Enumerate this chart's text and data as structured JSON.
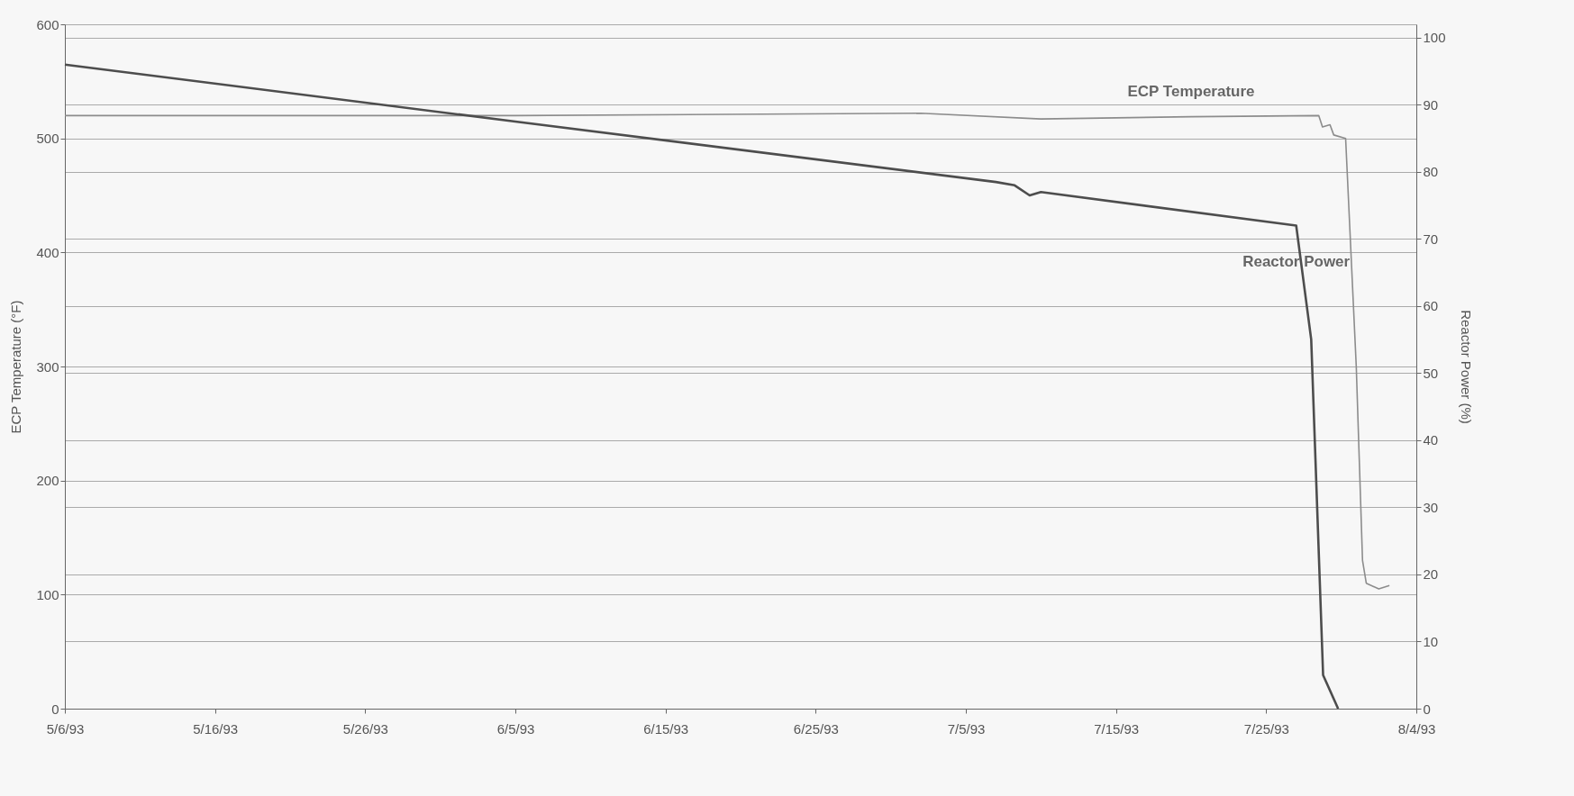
{
  "chart_data": {
    "type": "line",
    "ylabel": "ECP Temperature (°F)",
    "y2label": "Reactor Power (%)",
    "xlim": [
      "1993-05-06",
      "1993-08-04"
    ],
    "xticks": [
      {
        "value": "1993-05-06",
        "label": "5/6/93"
      },
      {
        "value": "1993-05-16",
        "label": "5/16/93"
      },
      {
        "value": "1993-05-26",
        "label": "5/26/93"
      },
      {
        "value": "1993-06-05",
        "label": "6/5/93"
      },
      {
        "value": "1993-06-15",
        "label": "6/15/93"
      },
      {
        "value": "1993-06-25",
        "label": "6/25/93"
      },
      {
        "value": "1993-07-05",
        "label": "7/5/93"
      },
      {
        "value": "1993-07-15",
        "label": "7/15/93"
      },
      {
        "value": "1993-07-25",
        "label": "7/25/93"
      },
      {
        "value": "1993-08-04",
        "label": "8/4/93"
      }
    ],
    "ylim": [
      0,
      600
    ],
    "yticks": [
      0,
      100,
      200,
      300,
      400,
      500,
      600
    ],
    "y2lim": [
      0,
      102
    ],
    "y2ticks": [
      0,
      10,
      20,
      30,
      40,
      50,
      60,
      70,
      80,
      90,
      100
    ],
    "grid": "y",
    "marker": "none",
    "line_style": "solid",
    "series": [
      {
        "name": "ECP Temperature",
        "color": "#8c8c8c",
        "x": [
          "1993-05-06",
          "1993-06-05",
          "1993-07-02",
          "1993-07-10",
          "1993-07-20",
          "1993-07-28T12:00",
          "1993-07-28T18:00",
          "1993-07-29T06:00",
          "1993-07-29T12:00",
          "1993-07-30T07:00",
          "1993-07-31T00:00",
          "1993-07-31T10:00",
          "1993-07-31T16:00",
          "1993-08-01T12:00",
          "1993-08-02T05:00"
        ],
        "values": [
          520,
          520,
          522,
          517,
          519,
          520,
          510,
          512,
          503,
          500,
          300,
          130,
          110,
          105,
          108
        ]
      },
      {
        "name": "Reactor Power",
        "color": "#4d4d4d",
        "axis": "y2",
        "x": [
          "1993-05-06",
          "1993-06-05",
          "1993-07-07",
          "1993-07-08T06:00",
          "1993-07-09T06:00",
          "1993-07-10",
          "1993-07-27",
          "1993-07-28",
          "1993-07-28T19:00",
          "1993-07-29T19:00"
        ],
        "values": [
          96,
          87.5,
          78.5,
          78,
          76.5,
          77,
          72,
          55,
          5,
          0
        ]
      }
    ]
  }
}
